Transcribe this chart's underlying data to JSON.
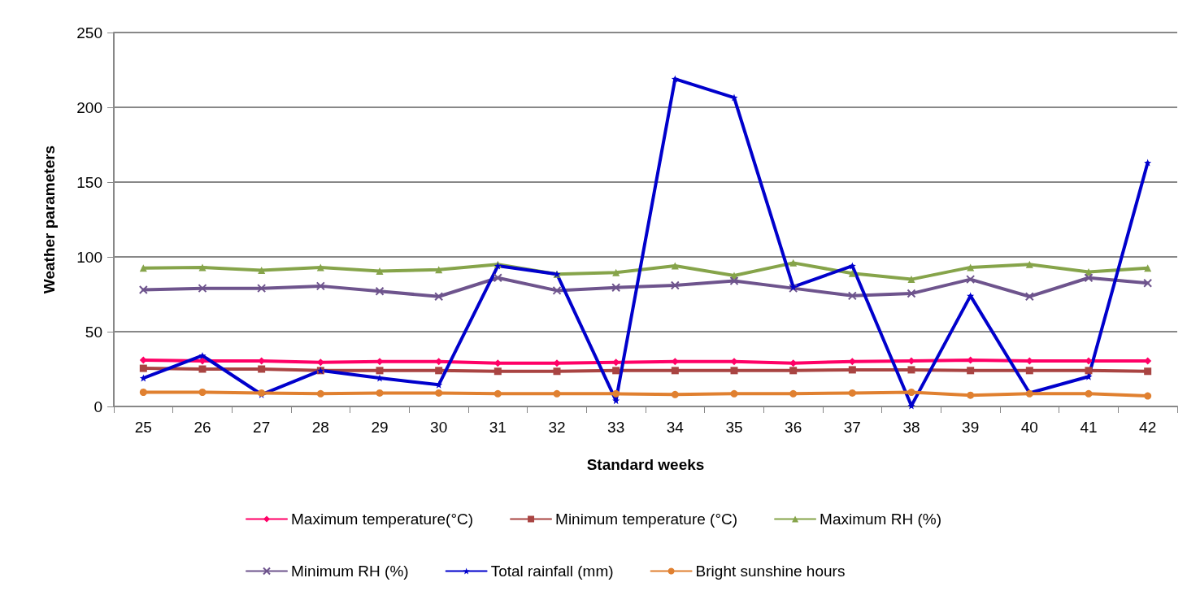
{
  "chart_data": {
    "type": "line",
    "xlabel": "Standard weeks",
    "ylabel": "Weather parameters",
    "categories": [
      "25",
      "26",
      "27",
      "28",
      "29",
      "30",
      "31",
      "32",
      "33",
      "34",
      "35",
      "36",
      "37",
      "38",
      "39",
      "40",
      "41",
      "42"
    ],
    "ylim": [
      0,
      250
    ],
    "yticks": [
      0,
      50,
      100,
      150,
      200,
      250
    ],
    "grid": "y",
    "legend": "bottom",
    "series": [
      {
        "name": "Maximum temperature(°C)",
        "color": "#ff0066",
        "marker": "diamond",
        "values": [
          31,
          30.5,
          30.5,
          29.5,
          30,
          30,
          29,
          29,
          29.5,
          30,
          30,
          29,
          30,
          30.5,
          31,
          30.5,
          30.5,
          30.5
        ]
      },
      {
        "name": "Minimum temperature (°C)",
        "color": "#a94442",
        "marker": "square",
        "values": [
          25.5,
          25,
          25,
          24,
          24,
          24,
          23.5,
          23.5,
          24,
          24,
          24,
          24,
          24.5,
          24.5,
          24,
          24,
          24,
          23.5
        ]
      },
      {
        "name": "Maximum RH (%)",
        "color": "#86a44a",
        "marker": "triangle",
        "values": [
          92.5,
          93,
          91,
          93,
          90.5,
          91.5,
          95,
          88.5,
          89.5,
          94,
          87.5,
          96,
          89,
          85,
          93,
          95,
          90,
          92.5
        ]
      },
      {
        "name": "Minimum RH (%)",
        "color": "#6e548d",
        "marker": "cross",
        "values": [
          78,
          79,
          79,
          80.5,
          77,
          73.5,
          86,
          77.5,
          79.5,
          81,
          84,
          79,
          74,
          75.5,
          85,
          73.5,
          86,
          82.5
        ]
      },
      {
        "name": "Total rainfall (mm)",
        "color": "#0000cc",
        "marker": "star",
        "values": [
          19,
          34,
          8,
          24,
          19,
          14.5,
          94,
          88.5,
          4,
          219,
          206.5,
          80,
          94,
          0.5,
          74,
          9,
          20,
          163
        ]
      },
      {
        "name": "Bright sunshine hours",
        "color": "#e08030",
        "marker": "circle",
        "values": [
          9.5,
          9.5,
          9,
          8.5,
          9,
          9,
          8.5,
          8.5,
          8.5,
          8,
          8.5,
          8.5,
          9,
          9.5,
          7.5,
          8.5,
          8.5,
          7
        ]
      }
    ]
  }
}
